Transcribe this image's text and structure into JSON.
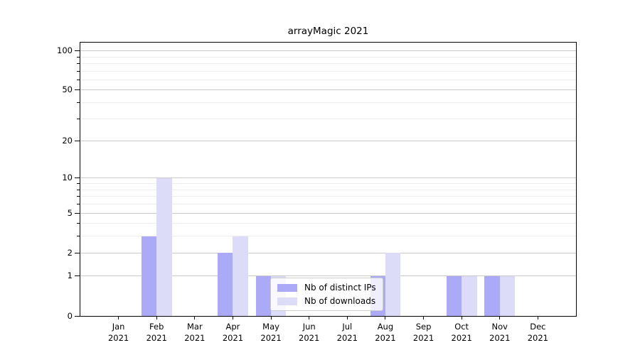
{
  "chart_data": {
    "type": "bar",
    "title": "arrayMagic 2021",
    "year": "2021",
    "categories": [
      "Jan",
      "Feb",
      "Mar",
      "Apr",
      "May",
      "Jun",
      "Jul",
      "Aug",
      "Sep",
      "Oct",
      "Nov",
      "Dec"
    ],
    "series": [
      {
        "name": "Nb of distinct IPs",
        "color": "#aaaaf8",
        "values": [
          0,
          3,
          0,
          2,
          1,
          0,
          0,
          1,
          0,
          1,
          1,
          0
        ]
      },
      {
        "name": "Nb of downloads",
        "color": "#dcdcf9",
        "values": [
          0,
          10,
          0,
          3,
          1,
          0,
          0,
          2,
          0,
          1,
          1,
          0
        ]
      }
    ],
    "y_scale": "log10(1+x)",
    "y_major_ticks": [
      0,
      1,
      2,
      5,
      10,
      20,
      50,
      100
    ],
    "y_minor_gridlines": [
      3,
      4,
      6,
      7,
      8,
      9,
      30,
      40,
      60,
      70,
      80,
      90
    ],
    "ylim": [
      0,
      115
    ],
    "grid": "horizontal",
    "legend_position": "lower-center-inside",
    "colors": {
      "major_grid": "#c9c9c9",
      "minor_grid": "#ededed",
      "axis": "#000000",
      "background": "#ffffff"
    }
  }
}
